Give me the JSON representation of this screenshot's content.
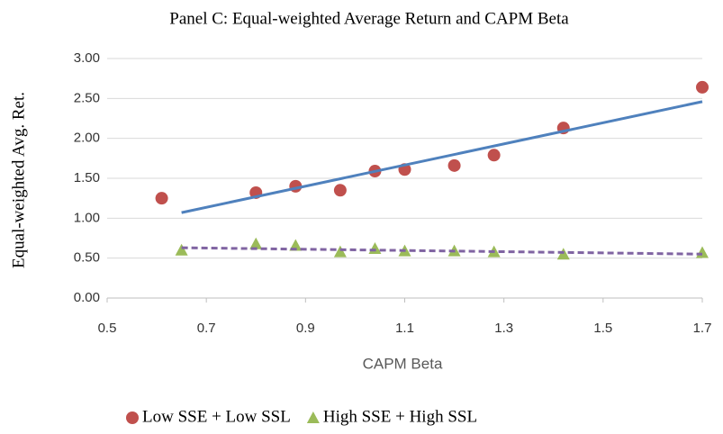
{
  "chart_data": {
    "type": "scatter",
    "title": "Panel C: Equal-weighted Average Return and CAPM Beta",
    "x_label": "CAPM Beta",
    "y_label": "Equal-weighted Avg. Ret.",
    "xlim": [
      0.5,
      1.7
    ],
    "xticks": [
      0.5,
      0.7,
      0.9,
      1.1,
      1.3,
      1.5,
      1.7
    ],
    "ylim": [
      0,
      3
    ],
    "yticks": [
      {
        "value": 0,
        "label": "0.00"
      },
      {
        "value": 0.5,
        "label": "0.50"
      },
      {
        "value": 1,
        "label": "1.00"
      },
      {
        "value": 1.5,
        "label": "1.50"
      },
      {
        "value": 2,
        "label": "2.00"
      },
      {
        "value": 2.5,
        "label": "2.50"
      },
      {
        "value": 3,
        "label": "3.00"
      }
    ],
    "grid": true,
    "legend": "bottom",
    "series": [
      {
        "name": "Low SSE + Low SSL",
        "color": "#c0504d",
        "marker": "circle",
        "x": [
          0.61,
          0.8,
          0.88,
          0.97,
          1.04,
          1.1,
          1.2,
          1.28,
          1.42,
          1.7
        ],
        "values": [
          1.25,
          1.32,
          1.4,
          1.35,
          1.59,
          1.61,
          1.66,
          1.79,
          2.13,
          2.64
        ],
        "trendline": {
          "color": "#4f81bd",
          "dashed": false,
          "x": [
            0.65,
            1.7
          ],
          "values": [
            1.07,
            2.46
          ]
        }
      },
      {
        "name": "High SSE + High SSL",
        "color": "#9bbb59",
        "marker": "triangle",
        "x": [
          0.65,
          0.8,
          0.88,
          0.97,
          1.04,
          1.1,
          1.2,
          1.28,
          1.42,
          1.7
        ],
        "values": [
          0.6,
          0.68,
          0.66,
          0.58,
          0.62,
          0.59,
          0.59,
          0.58,
          0.55,
          0.57
        ],
        "trendline": {
          "color": "#8064a2",
          "dashed": true,
          "x": [
            0.65,
            1.7
          ],
          "values": [
            0.63,
            0.55
          ]
        }
      }
    ]
  }
}
